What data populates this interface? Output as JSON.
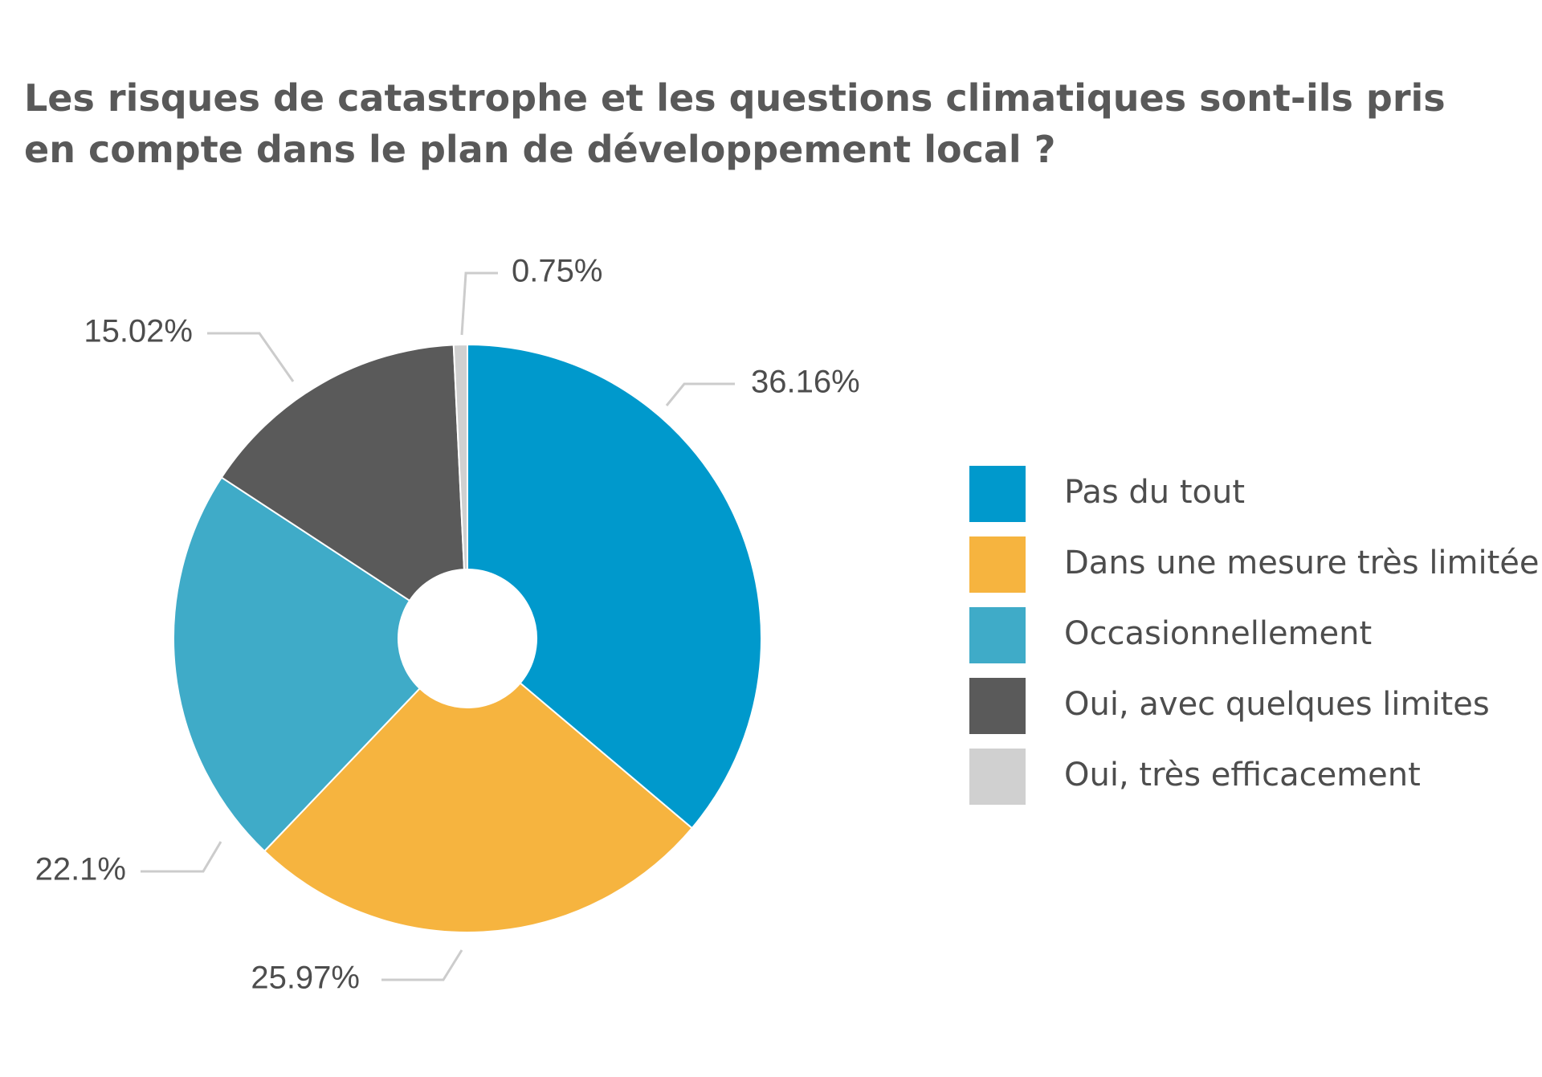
{
  "title": {
    "line1": "Les risques de catastrophe et les questions climatiques sont-ils pris",
    "line2": "en compte dans le plan de développement local ?"
  },
  "chart_data": {
    "type": "pie",
    "donut": true,
    "title": "Les risques de catastrophe et les questions climatiques sont-ils pris en compte dans le plan de développement local ?",
    "slices": [
      {
        "label": "Pas du tout",
        "value": 36.16,
        "value_label": "36.16%",
        "color": "#0099cc"
      },
      {
        "label": "Dans une mesure très limitée",
        "value": 25.97,
        "value_label": "25.97%",
        "color": "#f6b43f"
      },
      {
        "label": "Occasionnellement",
        "value": 22.1,
        "value_label": "22.1%",
        "color": "#3fabc8"
      },
      {
        "label": "Oui, avec quelques limites",
        "value": 15.02,
        "value_label": "15.02%",
        "color": "#5a5a5a"
      },
      {
        "label": "Oui, très efficacement",
        "value": 0.75,
        "value_label": "0.75%",
        "color": "#d0d0d0"
      }
    ],
    "legend_position": "right",
    "leader_line_color": "#cccccc"
  }
}
